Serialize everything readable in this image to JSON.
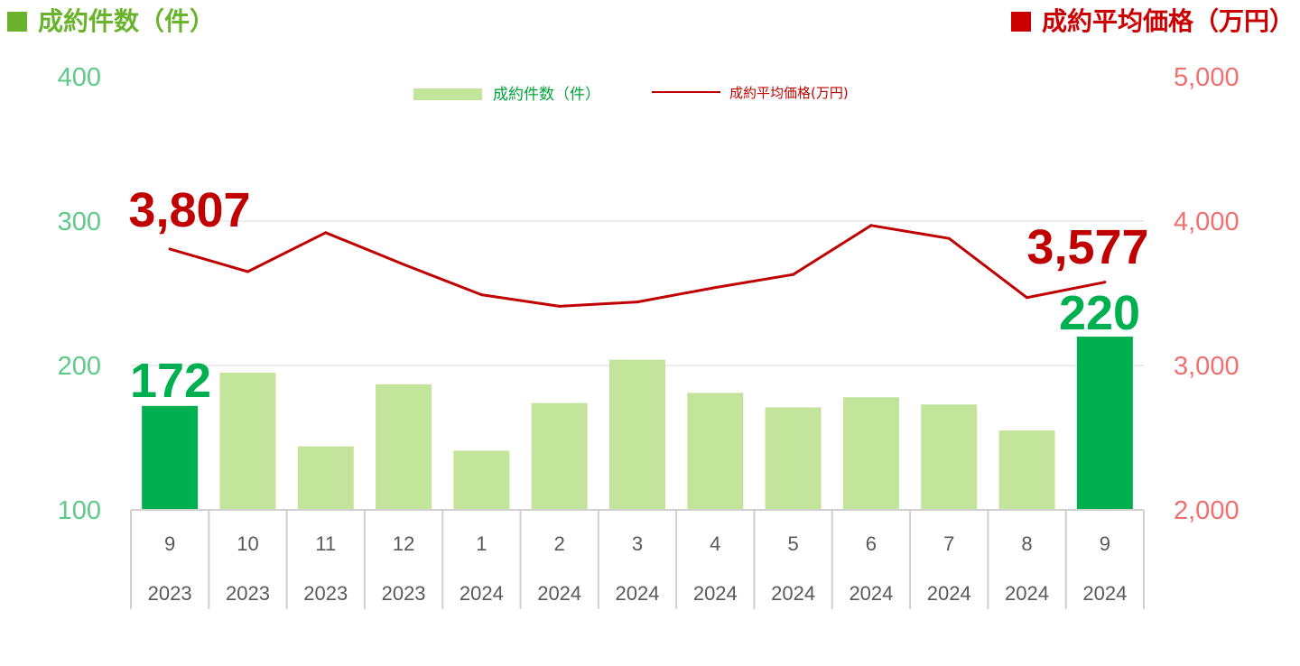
{
  "header": {
    "left_title": "成約件数（件）",
    "right_title": "成約平均価格（万円）"
  },
  "legend": {
    "count_label": "成約件数（件）",
    "price_label": "成約平均価格(万円)"
  },
  "colors": {
    "bar": "#c3e49b",
    "bar_highlight": "#00b050",
    "line": "#c00000",
    "left_axis": "#5fc98c",
    "right_axis": "#f07070",
    "header_left": "#6ab42d",
    "header_right": "#cc0000"
  },
  "chart_data": {
    "type": "bar",
    "categories": [
      {
        "month": "9",
        "year": "2023"
      },
      {
        "month": "10",
        "year": "2023"
      },
      {
        "month": "11",
        "year": "2023"
      },
      {
        "month": "12",
        "year": "2023"
      },
      {
        "month": "1",
        "year": "2024"
      },
      {
        "month": "2",
        "year": "2024"
      },
      {
        "month": "3",
        "year": "2024"
      },
      {
        "month": "4",
        "year": "2024"
      },
      {
        "month": "5",
        "year": "2024"
      },
      {
        "month": "6",
        "year": "2024"
      },
      {
        "month": "7",
        "year": "2024"
      },
      {
        "month": "8",
        "year": "2024"
      },
      {
        "month": "9",
        "year": "2024"
      }
    ],
    "series": [
      {
        "name": "成約件数（件）",
        "type": "bar",
        "axis": "left",
        "values": [
          172,
          195,
          144,
          187,
          141,
          174,
          204,
          181,
          171,
          178,
          173,
          155,
          220
        ],
        "highlight": [
          0,
          12
        ]
      },
      {
        "name": "成約平均価格(万円)",
        "type": "line",
        "axis": "right",
        "values": [
          3807,
          3650,
          3920,
          3700,
          3490,
          3410,
          3440,
          3540,
          3630,
          3970,
          3880,
          3470,
          3577
        ]
      }
    ],
    "left_axis": {
      "ticks": [
        "100",
        "200",
        "300",
        "400"
      ],
      "min": 100,
      "max": 400
    },
    "right_axis": {
      "ticks": [
        "2,000",
        "3,000",
        "4,000",
        "5,000"
      ],
      "min": 2000,
      "max": 5000
    },
    "data_labels": [
      {
        "series": 1,
        "index": 0,
        "text": "3,807"
      },
      {
        "series": 1,
        "index": 12,
        "text": "3,577"
      },
      {
        "series": 0,
        "index": 0,
        "text": "172"
      },
      {
        "series": 0,
        "index": 12,
        "text": "220"
      }
    ],
    "grid": true,
    "legend_position": "top-center"
  }
}
